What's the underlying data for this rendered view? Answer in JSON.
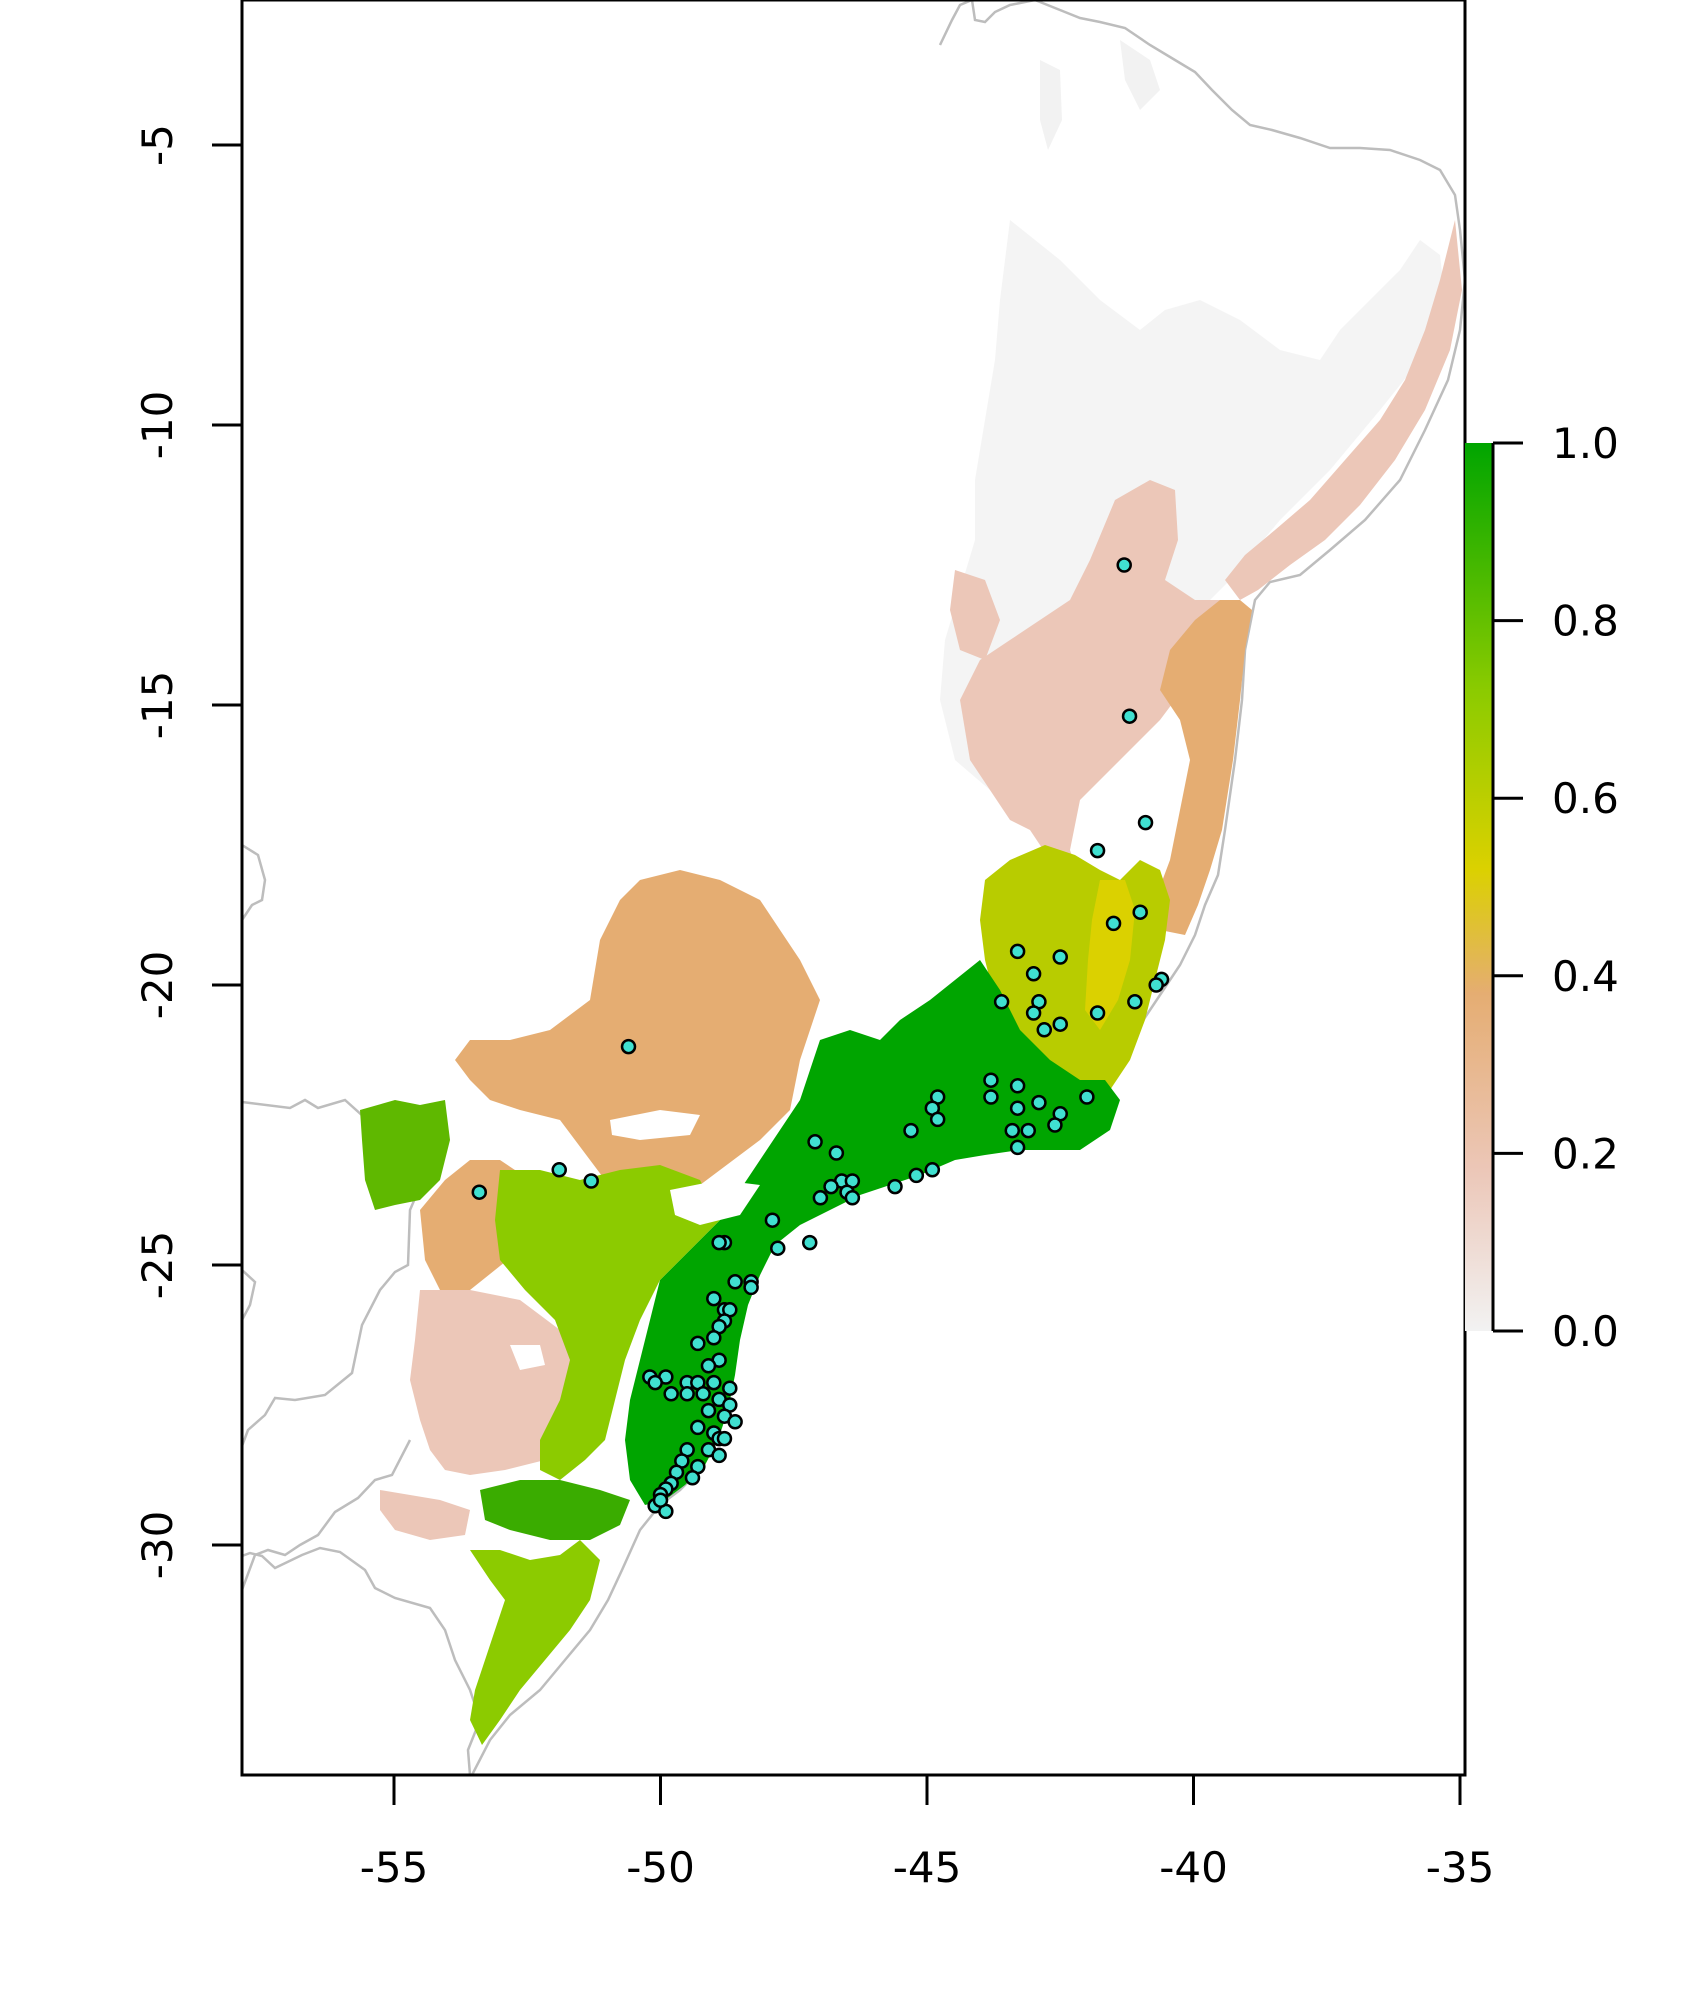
{
  "chart_data": {
    "type": "map",
    "title": "",
    "xlabel": "",
    "ylabel": "",
    "xlim": [
      -58,
      -35
    ],
    "ylim": [
      -34,
      -2.3
    ],
    "x_ticks": [
      {
        "value": -55,
        "label": "-55"
      },
      {
        "value": -50,
        "label": "-50"
      },
      {
        "value": -45,
        "label": "-45"
      },
      {
        "value": -40,
        "label": "-40"
      },
      {
        "value": -35,
        "label": "-35"
      }
    ],
    "y_ticks": [
      {
        "value": -5,
        "label": "-5"
      },
      {
        "value": -10,
        "label": "-10"
      },
      {
        "value": -15,
        "label": "-15"
      },
      {
        "value": -20,
        "label": "-20"
      },
      {
        "value": -25,
        "label": "-25"
      },
      {
        "value": -30,
        "label": "-30"
      }
    ],
    "legend": {
      "type": "colorbar",
      "range": [
        0.0,
        1.0
      ],
      "ticks": [
        {
          "value": 0.0,
          "label": "0.0"
        },
        {
          "value": 0.2,
          "label": "0.2"
        },
        {
          "value": 0.4,
          "label": "0.4"
        },
        {
          "value": 0.6,
          "label": "0.6"
        },
        {
          "value": 0.8,
          "label": "0.8"
        },
        {
          "value": 1.0,
          "label": "1.0"
        }
      ],
      "colors": [
        "#f2f2f2",
        "#ecc7b8",
        "#e5ad72",
        "#dbd100",
        "#8ccb00",
        "#00a500"
      ]
    },
    "marker_color": "#40e0d0",
    "occurrences": [
      [
        -41.3,
        -12.5
      ],
      [
        -41.2,
        -15.2
      ],
      [
        -40.9,
        -17.1
      ],
      [
        -41.8,
        -17.6
      ],
      [
        -41.5,
        -18.9
      ],
      [
        -41.0,
        -18.7
      ],
      [
        -43.3,
        -19.4
      ],
      [
        -42.5,
        -19.5
      ],
      [
        -43.0,
        -19.8
      ],
      [
        -40.6,
        -19.9
      ],
      [
        -40.7,
        -20.0
      ],
      [
        -43.6,
        -20.3
      ],
      [
        -42.9,
        -20.3
      ],
      [
        -41.1,
        -20.3
      ],
      [
        -43.0,
        -20.5
      ],
      [
        -41.8,
        -20.5
      ],
      [
        -42.8,
        -20.8
      ],
      [
        -42.5,
        -20.7
      ],
      [
        -43.8,
        -21.7
      ],
      [
        -43.3,
        -21.8
      ],
      [
        -43.8,
        -22.0
      ],
      [
        -44.8,
        -22.0
      ],
      [
        -44.9,
        -22.2
      ],
      [
        -43.3,
        -22.2
      ],
      [
        -42.9,
        -22.1
      ],
      [
        -42.0,
        -22.0
      ],
      [
        -42.5,
        -22.3
      ],
      [
        -44.8,
        -22.4
      ],
      [
        -42.6,
        -22.5
      ],
      [
        -45.3,
        -22.6
      ],
      [
        -43.4,
        -22.6
      ],
      [
        -43.1,
        -22.6
      ],
      [
        -47.1,
        -22.8
      ],
      [
        -46.7,
        -23.0
      ],
      [
        -43.3,
        -22.9
      ],
      [
        -44.9,
        -23.3
      ],
      [
        -45.2,
        -23.4
      ],
      [
        -53.4,
        -23.7
      ],
      [
        -51.9,
        -23.3
      ],
      [
        -51.3,
        -23.5
      ],
      [
        -46.6,
        -23.5
      ],
      [
        -46.4,
        -23.5
      ],
      [
        -46.8,
        -23.6
      ],
      [
        -46.5,
        -23.7
      ],
      [
        -47.0,
        -23.8
      ],
      [
        -46.4,
        -23.8
      ],
      [
        -45.6,
        -23.6
      ],
      [
        -47.9,
        -24.2
      ],
      [
        -48.8,
        -24.6
      ],
      [
        -47.2,
        -24.6
      ],
      [
        -47.8,
        -24.7
      ],
      [
        -48.9,
        -24.6
      ],
      [
        -48.6,
        -25.3
      ],
      [
        -48.3,
        -25.3
      ],
      [
        -48.3,
        -25.4
      ],
      [
        -49.0,
        -25.6
      ],
      [
        -48.8,
        -25.8
      ],
      [
        -48.7,
        -25.8
      ],
      [
        -48.8,
        -26.0
      ],
      [
        -48.9,
        -26.1
      ],
      [
        -49.0,
        -26.3
      ],
      [
        -49.3,
        -26.4
      ],
      [
        -48.9,
        -26.7
      ],
      [
        -49.1,
        -26.8
      ],
      [
        -50.2,
        -27.0
      ],
      [
        -49.9,
        -27.0
      ],
      [
        -50.1,
        -27.1
      ],
      [
        -49.5,
        -27.1
      ],
      [
        -49.3,
        -27.1
      ],
      [
        -49.0,
        -27.1
      ],
      [
        -48.7,
        -27.2
      ],
      [
        -49.8,
        -27.3
      ],
      [
        -49.5,
        -27.3
      ],
      [
        -49.2,
        -27.3
      ],
      [
        -48.9,
        -27.4
      ],
      [
        -48.7,
        -27.5
      ],
      [
        -49.1,
        -27.6
      ],
      [
        -48.8,
        -27.7
      ],
      [
        -48.6,
        -27.8
      ],
      [
        -49.3,
        -27.9
      ],
      [
        -49.0,
        -28.0
      ],
      [
        -48.9,
        -28.1
      ],
      [
        -48.8,
        -28.1
      ],
      [
        -49.1,
        -28.3
      ],
      [
        -49.5,
        -28.3
      ],
      [
        -48.9,
        -28.4
      ],
      [
        -49.6,
        -28.5
      ],
      [
        -49.3,
        -28.6
      ],
      [
        -49.7,
        -28.7
      ],
      [
        -49.4,
        -28.8
      ],
      [
        -49.8,
        -28.9
      ],
      [
        -49.9,
        -29.0
      ],
      [
        -50.0,
        -29.1
      ],
      [
        -50.1,
        -29.3
      ],
      [
        -49.9,
        -29.4
      ],
      [
        -50.0,
        -29.2
      ],
      [
        -50.6,
        -21.1
      ]
    ]
  }
}
